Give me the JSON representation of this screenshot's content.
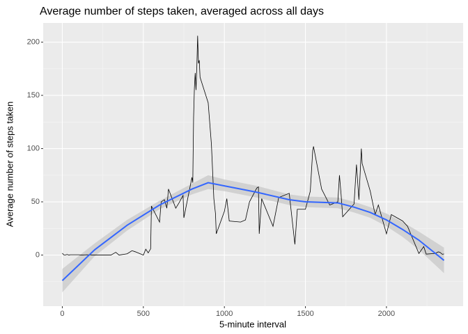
{
  "chart_data": {
    "type": "line",
    "title": "Average number of steps taken, averaged across all days",
    "x_label": "5-minute interval",
    "y_label": "Average number of steps taken",
    "xlim": [
      -118,
      2473
    ],
    "ylim": [
      -48,
      218
    ],
    "xticks": [
      0,
      500,
      1000,
      1500,
      2000
    ],
    "yticks": [
      0,
      50,
      100,
      150,
      200
    ],
    "grid": true,
    "line": {
      "color": "#000000",
      "x": [
        0,
        10,
        20,
        30,
        40,
        50,
        100,
        120,
        150,
        200,
        300,
        330,
        350,
        400,
        430,
        450,
        500,
        515,
        530,
        545,
        550,
        600,
        610,
        630,
        645,
        655,
        700,
        720,
        745,
        750,
        800,
        805,
        810,
        815,
        820,
        825,
        830,
        835,
        840,
        845,
        850,
        900,
        920,
        935,
        945,
        950,
        1000,
        1015,
        1030,
        1100,
        1130,
        1155,
        1200,
        1210,
        1215,
        1230,
        1300,
        1335,
        1400,
        1435,
        1450,
        1500,
        1530,
        1545,
        1550,
        1600,
        1650,
        1700,
        1710,
        1720,
        1730,
        1800,
        1815,
        1830,
        1845,
        1850,
        1900,
        1930,
        1950,
        2000,
        2030,
        2100,
        2130,
        2200,
        2230,
        2245,
        2300,
        2320,
        2330,
        2345,
        2355
      ],
      "values": [
        1.7,
        0.1,
        0.1,
        0.6,
        0,
        0.3,
        0.3,
        0,
        0.3,
        0,
        0,
        2.6,
        0,
        1.2,
        4.1,
        3.1,
        0,
        5.5,
        2.1,
        5.9,
        46,
        31,
        50,
        52,
        44,
        62,
        44,
        49,
        56,
        35,
        73,
        68,
        129,
        157,
        171,
        155,
        177,
        206,
        180,
        183,
        167,
        143,
        104,
        53,
        39,
        20,
        41,
        53,
        32,
        31,
        33,
        50,
        63,
        64,
        20,
        53,
        27,
        54,
        58,
        10,
        43,
        43,
        60,
        98,
        102,
        62,
        47,
        50,
        75,
        57,
        36,
        48,
        85,
        52,
        100,
        86,
        60,
        38,
        47,
        20,
        38,
        32,
        27,
        1.5,
        8,
        0.9,
        1.5,
        3,
        2.6,
        0.7,
        1.1
      ]
    },
    "smooth": {
      "color": "#3366ff",
      "band_color": "#cccccc",
      "x": [
        0,
        200,
        400,
        600,
        800,
        900,
        1000,
        1200,
        1400,
        1500,
        1700,
        1800,
        1900,
        2000,
        2100,
        2200,
        2355
      ],
      "values": [
        -24,
        5,
        28,
        47,
        62,
        68,
        65,
        59,
        52,
        50,
        49,
        45,
        40,
        33,
        24,
        14,
        -5
      ],
      "lower": [
        -35,
        -1,
        23,
        43,
        57,
        62,
        60,
        54,
        47,
        45,
        44,
        40,
        35,
        27,
        17,
        5,
        -17
      ],
      "upper": [
        -13,
        11,
        33,
        51,
        67,
        75,
        71,
        65,
        57,
        55,
        54,
        50,
        45,
        39,
        31,
        22,
        7
      ]
    }
  }
}
